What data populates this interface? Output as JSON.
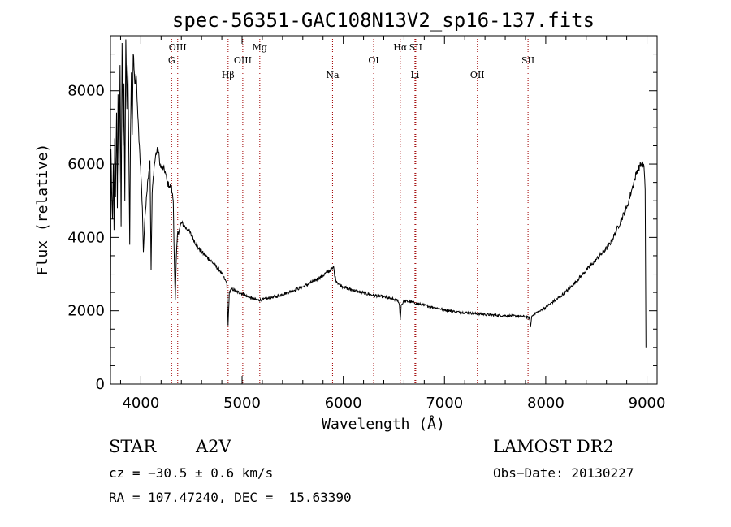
{
  "chart_data": {
    "type": "line",
    "title": "spec-56351-GAC108N13V2_sp16-137.fits",
    "xlabel": "Wavelength (Å)",
    "ylabel": "Flux (relative)",
    "xlim": [
      3700,
      9100
    ],
    "ylim": [
      0,
      9500
    ],
    "xticks": [
      4000,
      5000,
      6000,
      7000,
      8000,
      9000
    ],
    "yticks": [
      0,
      2000,
      4000,
      6000,
      8000
    ],
    "grid": false,
    "series": [
      {
        "points": [
          [
            3700,
            200
          ],
          [
            3705,
            6400
          ],
          [
            3712,
            5200
          ],
          [
            3720,
            4500
          ],
          [
            3728,
            6000
          ],
          [
            3735,
            4200
          ],
          [
            3742,
            6700
          ],
          [
            3750,
            5100
          ],
          [
            3760,
            7400
          ],
          [
            3768,
            4800
          ],
          [
            3775,
            7900
          ],
          [
            3785,
            5500
          ],
          [
            3795,
            8700
          ],
          [
            3805,
            4300
          ],
          [
            3815,
            9300
          ],
          [
            3825,
            6500
          ],
          [
            3833,
            8200
          ],
          [
            3842,
            5000
          ],
          [
            3852,
            9400
          ],
          [
            3862,
            7500
          ],
          [
            3872,
            8700
          ],
          [
            3882,
            6100
          ],
          [
            3890,
            3800
          ],
          [
            3897,
            6700
          ],
          [
            3906,
            8500
          ],
          [
            3915,
            6800
          ],
          [
            3925,
            9000
          ],
          [
            3940,
            8200
          ],
          [
            3955,
            8400
          ],
          [
            3970,
            7300
          ],
          [
            3990,
            6300
          ],
          [
            4005,
            5500
          ],
          [
            4015,
            4800
          ],
          [
            4025,
            3600
          ],
          [
            4033,
            4100
          ],
          [
            4042,
            4600
          ],
          [
            4055,
            5100
          ],
          [
            4070,
            5600
          ],
          [
            4090,
            6100
          ],
          [
            4101,
            3100
          ],
          [
            4112,
            5200
          ],
          [
            4130,
            5900
          ],
          [
            4150,
            6300
          ],
          [
            4170,
            6400
          ],
          [
            4195,
            5900
          ],
          [
            4215,
            5900
          ],
          [
            4240,
            5800
          ],
          [
            4260,
            5500
          ],
          [
            4280,
            5400
          ],
          [
            4300,
            5400
          ],
          [
            4310,
            5200
          ],
          [
            4320,
            5000
          ],
          [
            4330,
            3500
          ],
          [
            4340,
            2300
          ],
          [
            4350,
            3400
          ],
          [
            4362,
            4100
          ],
          [
            4380,
            4200
          ],
          [
            4400,
            4400
          ],
          [
            4430,
            4300
          ],
          [
            4470,
            4200
          ],
          [
            4520,
            3950
          ],
          [
            4570,
            3700
          ],
          [
            4620,
            3550
          ],
          [
            4680,
            3400
          ],
          [
            4730,
            3250
          ],
          [
            4780,
            3100
          ],
          [
            4830,
            2850
          ],
          [
            4850,
            2750
          ],
          [
            4862,
            1600
          ],
          [
            4874,
            2500
          ],
          [
            4900,
            2600
          ],
          [
            4950,
            2520
          ],
          [
            5000,
            2470
          ],
          [
            5050,
            2390
          ],
          [
            5100,
            2330
          ],
          [
            5150,
            2290
          ],
          [
            5200,
            2300
          ],
          [
            5250,
            2330
          ],
          [
            5300,
            2370
          ],
          [
            5350,
            2400
          ],
          [
            5400,
            2450
          ],
          [
            5450,
            2500
          ],
          [
            5500,
            2550
          ],
          [
            5550,
            2600
          ],
          [
            5600,
            2650
          ],
          [
            5650,
            2720
          ],
          [
            5700,
            2800
          ],
          [
            5750,
            2880
          ],
          [
            5800,
            2960
          ],
          [
            5840,
            3050
          ],
          [
            5870,
            3100
          ],
          [
            5893,
            3150
          ],
          [
            5905,
            3200
          ],
          [
            5918,
            2900
          ],
          [
            5935,
            2800
          ],
          [
            5960,
            2720
          ],
          [
            6000,
            2650
          ],
          [
            6050,
            2600
          ],
          [
            6100,
            2560
          ],
          [
            6150,
            2520
          ],
          [
            6200,
            2490
          ],
          [
            6250,
            2450
          ],
          [
            6300,
            2420
          ],
          [
            6350,
            2400
          ],
          [
            6400,
            2380
          ],
          [
            6450,
            2340
          ],
          [
            6500,
            2310
          ],
          [
            6540,
            2280
          ],
          [
            6555,
            2150
          ],
          [
            6563,
            1750
          ],
          [
            6572,
            2150
          ],
          [
            6600,
            2260
          ],
          [
            6650,
            2250
          ],
          [
            6700,
            2220
          ],
          [
            6750,
            2180
          ],
          [
            6800,
            2150
          ],
          [
            6850,
            2120
          ],
          [
            6900,
            2090
          ],
          [
            6950,
            2060
          ],
          [
            7000,
            2030
          ],
          [
            7050,
            2000
          ],
          [
            7100,
            1980
          ],
          [
            7150,
            1960
          ],
          [
            7200,
            1950
          ],
          [
            7250,
            1940
          ],
          [
            7300,
            1920
          ],
          [
            7350,
            1910
          ],
          [
            7400,
            1900
          ],
          [
            7450,
            1890
          ],
          [
            7500,
            1880
          ],
          [
            7550,
            1870
          ],
          [
            7600,
            1870
          ],
          [
            7650,
            1860
          ],
          [
            7700,
            1860
          ],
          [
            7750,
            1850
          ],
          [
            7800,
            1840
          ],
          [
            7840,
            1800
          ],
          [
            7850,
            1550
          ],
          [
            7862,
            1850
          ],
          [
            7900,
            1940
          ],
          [
            7950,
            2000
          ],
          [
            8000,
            2100
          ],
          [
            8050,
            2200
          ],
          [
            8100,
            2300
          ],
          [
            8150,
            2400
          ],
          [
            8200,
            2520
          ],
          [
            8250,
            2650
          ],
          [
            8300,
            2800
          ],
          [
            8350,
            2950
          ],
          [
            8400,
            3100
          ],
          [
            8450,
            3250
          ],
          [
            8500,
            3400
          ],
          [
            8550,
            3550
          ],
          [
            8600,
            3700
          ],
          [
            8650,
            3900
          ],
          [
            8700,
            4200
          ],
          [
            8750,
            4500
          ],
          [
            8780,
            4700
          ],
          [
            8800,
            4800
          ],
          [
            8820,
            5000
          ],
          [
            8850,
            5300
          ],
          [
            8880,
            5600
          ],
          [
            8900,
            5800
          ],
          [
            8930,
            5950
          ],
          [
            8950,
            6000
          ],
          [
            8970,
            5950
          ],
          [
            8982,
            5300
          ],
          [
            8990,
            1000
          ]
        ]
      }
    ],
    "lines": [
      {
        "label": "G",
        "x": 4304,
        "row": 2
      },
      {
        "label": "OIII",
        "x": 4364,
        "row": 1
      },
      {
        "label": "Hβ",
        "x": 4862,
        "row": 3
      },
      {
        "label": "OIII",
        "x": 5007,
        "row": 2
      },
      {
        "label": "Mg",
        "x": 5175,
        "row": 1
      },
      {
        "label": "Na",
        "x": 5894,
        "row": 3
      },
      {
        "label": "OI",
        "x": 6300,
        "row": 2
      },
      {
        "label": "Hα",
        "x": 6563,
        "row": 1
      },
      {
        "label": "SII",
        "x": 6716,
        "row": 1
      },
      {
        "label": "Li",
        "x": 6708,
        "row": 3
      },
      {
        "label": "OII",
        "x": 7325,
        "row": 3
      },
      {
        "label": "SII",
        "x": 7825,
        "row": 2
      }
    ]
  },
  "info": {
    "object_type": "STAR",
    "subclass": "A2V",
    "cz": "cz = −30.5 ± 0.6 km/s",
    "coords": "RA = 107.47240, DEC =  15.63390",
    "survey": "LAMOST DR2",
    "obs_date": "Obs−Date: 20130227"
  }
}
